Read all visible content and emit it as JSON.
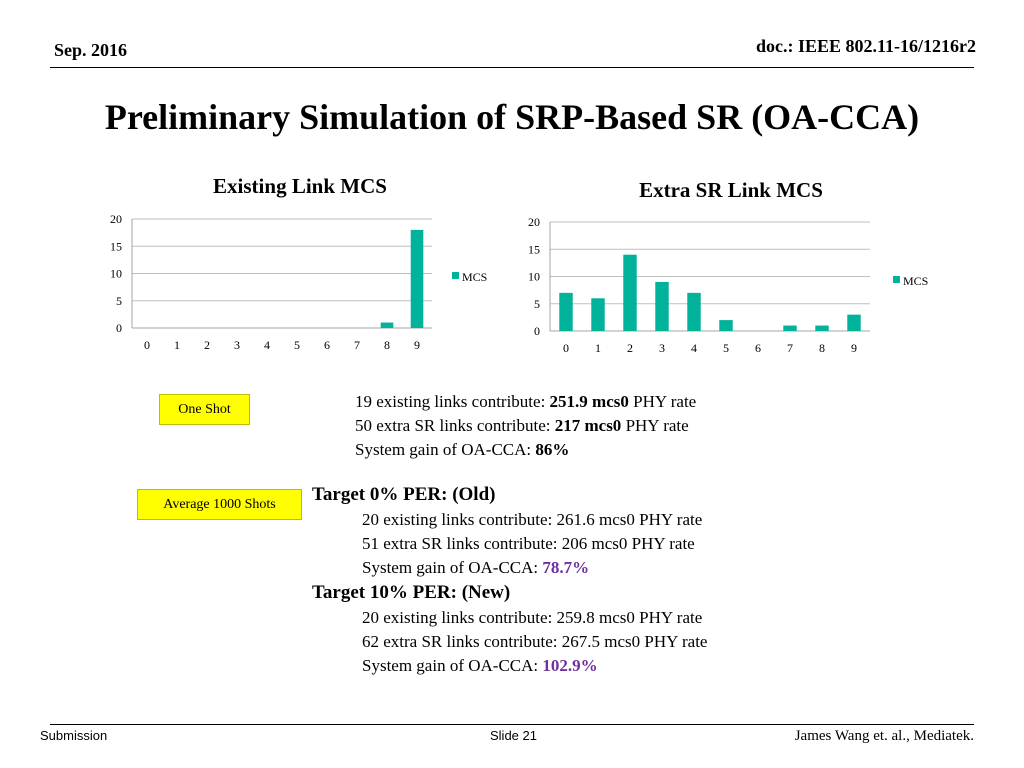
{
  "header": {
    "date": "Sep. 2016",
    "doc": "doc.: IEEE 802.11-16/1216r2"
  },
  "title": "Preliminary Simulation of SRP-Based SR (OA-CCA)",
  "chart_data": [
    {
      "type": "bar",
      "title": "Existing Link MCS",
      "categories": [
        "0",
        "1",
        "2",
        "3",
        "4",
        "5",
        "6",
        "7",
        "8",
        "9"
      ],
      "series": [
        {
          "name": "MCS",
          "values": [
            0,
            0,
            0,
            0,
            0,
            0,
            0,
            0,
            1,
            18
          ],
          "color": "#00b39a"
        }
      ],
      "xlabel": "",
      "ylabel": "",
      "ylim": [
        0,
        20
      ],
      "yticks": [
        0,
        5,
        10,
        15,
        20
      ],
      "grid": true,
      "legend": "right"
    },
    {
      "type": "bar",
      "title": "Extra SR Link MCS",
      "categories": [
        "0",
        "1",
        "2",
        "3",
        "4",
        "5",
        "6",
        "7",
        "8",
        "9"
      ],
      "series": [
        {
          "name": "MCS",
          "values": [
            7,
            6,
            14,
            9,
            7,
            2,
            0,
            1,
            1,
            3
          ],
          "color": "#00b39a"
        }
      ],
      "xlabel": "",
      "ylabel": "",
      "ylim": [
        0,
        20
      ],
      "yticks": [
        0,
        5,
        10,
        15,
        20
      ],
      "grid": true,
      "legend": "right"
    }
  ],
  "tags": {
    "one_shot": "One Shot",
    "average": "Average 1000 Shots"
  },
  "one_shot": {
    "line1_pre": "19 existing links contribute: ",
    "line1_bold": "251.9 mcs0",
    "line1_post": " PHY rate",
    "line2_pre": "50 extra SR links contribute: ",
    "line2_bold": "217 mcs0",
    "line2_post": " PHY rate",
    "line3_pre": "System gain of OA-CCA: ",
    "line3_bold": "86%"
  },
  "targets": [
    {
      "heading": "Target 0% PER: (Old)",
      "line1": "20 existing links contribute: 261.6 mcs0 PHY rate",
      "line2": "51 extra SR links contribute: 206 mcs0 PHY rate",
      "gain_label": "System gain of OA-CCA: ",
      "gain_value": "78.7%"
    },
    {
      "heading": "Target 10% PER: (New)",
      "line1": "20 existing links contribute: 259.8 mcs0 PHY rate",
      "line2": "62 extra SR links contribute: 267.5 mcs0 PHY rate",
      "gain_label": "System gain of OA-CCA: ",
      "gain_value": "102.9%"
    }
  ],
  "footer": {
    "left": "Submission",
    "center": "Slide 21",
    "right": "James Wang et. al., Mediatek."
  },
  "colors": {
    "bar": "#00b39a",
    "tag_bg": "#ffff00",
    "highlight": "#7030a0"
  }
}
